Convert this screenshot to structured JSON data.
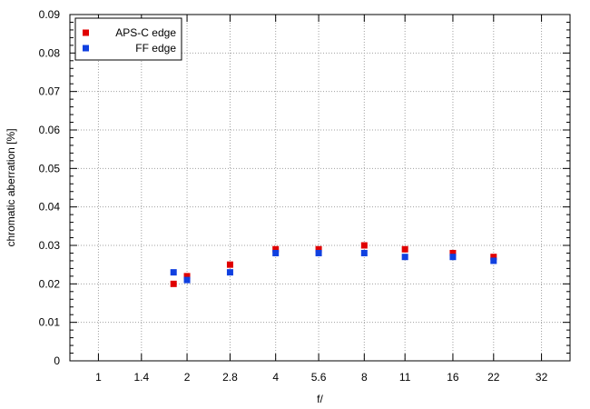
{
  "chart_data": {
    "type": "scatter",
    "title": "",
    "xlabel": "f/",
    "ylabel": "chromatic aberration [%]",
    "x_scale": "log2",
    "x_ticks": [
      "1",
      "1.4",
      "2",
      "2.8",
      "4",
      "5.6",
      "8",
      "11",
      "16",
      "22",
      "32"
    ],
    "xlim": [
      0.8,
      40
    ],
    "ylim": [
      0,
      0.09
    ],
    "y_ticks": [
      "0",
      "0.01",
      "0.02",
      "0.03",
      "0.04",
      "0.05",
      "0.06",
      "0.07",
      "0.08",
      "0.09"
    ],
    "grid": true,
    "legend_position": "top-left",
    "series": [
      {
        "name": "APS-C edge",
        "color": "#e00000",
        "x": [
          1.8,
          2,
          2.8,
          4,
          5.6,
          8,
          11,
          16,
          22
        ],
        "values": [
          0.02,
          0.022,
          0.025,
          0.029,
          0.029,
          0.03,
          0.029,
          0.028,
          0.027
        ]
      },
      {
        "name": "FF edge",
        "color": "#1040e0",
        "x": [
          1.8,
          2,
          2.8,
          4,
          5.6,
          8,
          11,
          16,
          22
        ],
        "values": [
          0.023,
          0.021,
          0.023,
          0.028,
          0.028,
          0.028,
          0.027,
          0.027,
          0.026
        ]
      }
    ]
  }
}
